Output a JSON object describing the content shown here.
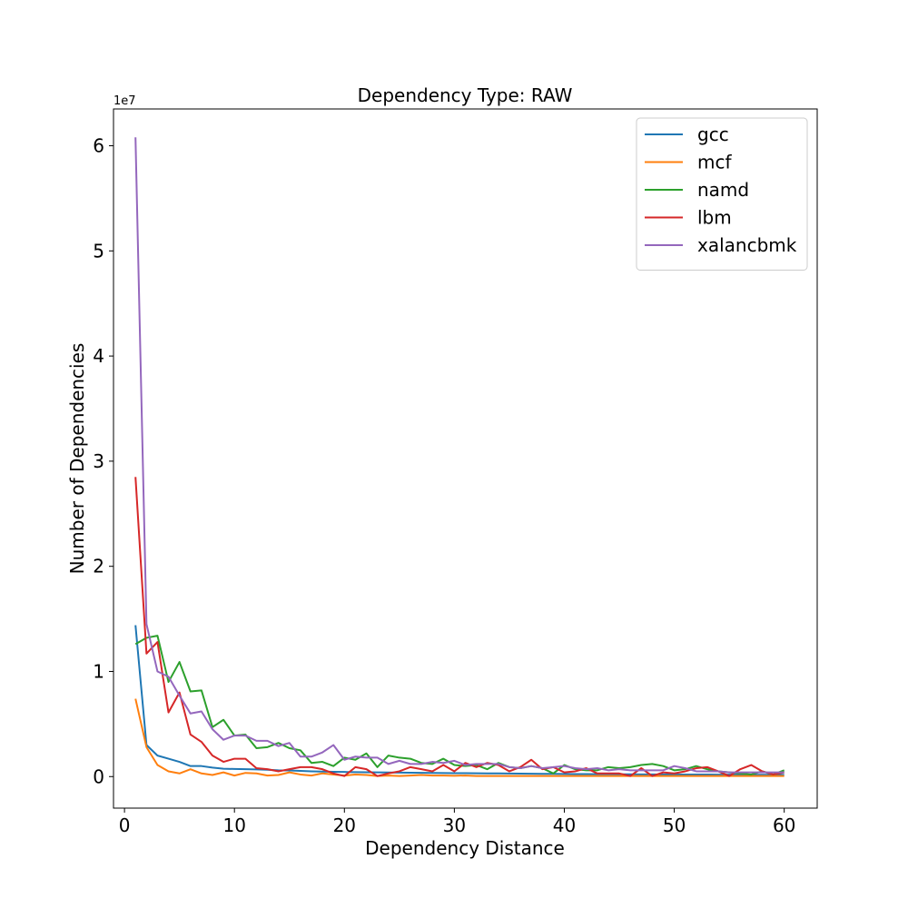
{
  "chart_data": {
    "type": "line",
    "title": "Dependency Type: RAW",
    "xlabel": "Dependency Distance",
    "ylabel": "Number of Dependencies",
    "y_offset_label": "1e7",
    "xlim": [
      -1,
      63
    ],
    "ylim": [
      -3000000,
      63500000
    ],
    "x_ticks": [
      0,
      10,
      20,
      30,
      40,
      50,
      60
    ],
    "y_ticks": [
      0,
      10000000,
      20000000,
      30000000,
      40000000,
      50000000,
      60000000
    ],
    "y_tick_labels": [
      "0",
      "1",
      "2",
      "3",
      "4",
      "5",
      "6"
    ],
    "grid": false,
    "legend_position": "top-right",
    "x": [
      1,
      2,
      3,
      4,
      5,
      6,
      7,
      8,
      9,
      10,
      11,
      12,
      13,
      14,
      15,
      16,
      17,
      18,
      19,
      20,
      21,
      22,
      23,
      24,
      25,
      26,
      27,
      28,
      29,
      30,
      31,
      32,
      33,
      34,
      35,
      36,
      37,
      38,
      39,
      40,
      41,
      42,
      43,
      44,
      45,
      46,
      47,
      48,
      49,
      50,
      51,
      52,
      53,
      54,
      55,
      56,
      57,
      58,
      59,
      60
    ],
    "series": [
      {
        "name": "gcc",
        "color": "#1f77b4",
        "values": [
          14400000,
          3000000,
          2000000,
          1700000,
          1400000,
          1000000,
          1000000,
          850000,
          750000,
          720000,
          700000,
          680000,
          650000,
          600000,
          580000,
          540000,
          500000,
          480000,
          460000,
          440000,
          420000,
          410000,
          400000,
          390000,
          380000,
          370000,
          360000,
          350000,
          340000,
          330000,
          320000,
          310000,
          300000,
          300000,
          290000,
          280000,
          270000,
          260000,
          260000,
          250000,
          240000,
          240000,
          230000,
          230000,
          220000,
          220000,
          210000,
          210000,
          200000,
          200000,
          200000,
          190000,
          190000,
          180000,
          180000,
          180000,
          170000,
          170000,
          170000,
          160000
        ]
      },
      {
        "name": "mcf",
        "color": "#ff7f0e",
        "values": [
          7400000,
          2800000,
          1100000,
          500000,
          300000,
          700000,
          300000,
          150000,
          400000,
          100000,
          350000,
          300000,
          100000,
          150000,
          400000,
          200000,
          100000,
          300000,
          200000,
          100000,
          200000,
          150000,
          50000,
          100000,
          50000,
          100000,
          150000,
          100000,
          100000,
          80000,
          100000,
          50000,
          50000,
          50000,
          50000,
          50000,
          50000,
          50000,
          50000,
          50000,
          50000,
          50000,
          50000,
          50000,
          50000,
          50000,
          50000,
          50000,
          50000,
          50000,
          50000,
          50000,
          50000,
          50000,
          50000,
          50000,
          50000,
          50000,
          50000,
          50000
        ]
      },
      {
        "name": "namd",
        "color": "#2ca02c",
        "values": [
          12600000,
          13200000,
          13400000,
          9000000,
          10900000,
          8100000,
          8200000,
          4700000,
          5400000,
          3900000,
          4000000,
          2700000,
          2800000,
          3200000,
          2700000,
          2500000,
          1300000,
          1400000,
          1000000,
          1800000,
          1600000,
          2200000,
          900000,
          2000000,
          1800000,
          1700000,
          1300000,
          1200000,
          1700000,
          1100000,
          1000000,
          1100000,
          700000,
          1300000,
          900000,
          800000,
          1000000,
          800000,
          300000,
          1100000,
          700000,
          600000,
          600000,
          900000,
          800000,
          900000,
          1100000,
          1200000,
          1000000,
          600000,
          700000,
          1000000,
          700000,
          500000,
          400000,
          300000,
          200000,
          500000,
          200000,
          600000
        ]
      },
      {
        "name": "lbm",
        "color": "#d62728",
        "values": [
          28500000,
          11700000,
          12800000,
          6100000,
          8000000,
          4000000,
          3300000,
          2000000,
          1400000,
          1700000,
          1700000,
          800000,
          700000,
          500000,
          700000,
          900000,
          900000,
          700000,
          300000,
          50000,
          900000,
          700000,
          50000,
          300000,
          500000,
          900000,
          700000,
          500000,
          1100000,
          500000,
          1300000,
          900000,
          1300000,
          1100000,
          500000,
          900000,
          1600000,
          700000,
          900000,
          400000,
          500000,
          800000,
          300000,
          300000,
          300000,
          50000,
          800000,
          50000,
          400000,
          300000,
          500000,
          800000,
          900000,
          500000,
          50000,
          700000,
          1100000,
          500000,
          200000,
          400000
        ]
      },
      {
        "name": "xalancbmk",
        "color": "#9467bd",
        "values": [
          60800000,
          14500000,
          10000000,
          9500000,
          7700000,
          6000000,
          6200000,
          4500000,
          3500000,
          3900000,
          3900000,
          3400000,
          3400000,
          2900000,
          3200000,
          1900000,
          1900000,
          2300000,
          3000000,
          1600000,
          1900000,
          1800000,
          1800000,
          1200000,
          1500000,
          1200000,
          1200000,
          1400000,
          1300000,
          1500000,
          1100000,
          1200000,
          1200000,
          1200000,
          900000,
          800000,
          1000000,
          800000,
          900000,
          1000000,
          800000,
          700000,
          800000,
          600000,
          700000,
          600000,
          600000,
          600000,
          600000,
          1000000,
          800000,
          500000,
          500000,
          500000,
          400000,
          400000,
          400000,
          400000,
          400000,
          400000
        ]
      }
    ]
  }
}
